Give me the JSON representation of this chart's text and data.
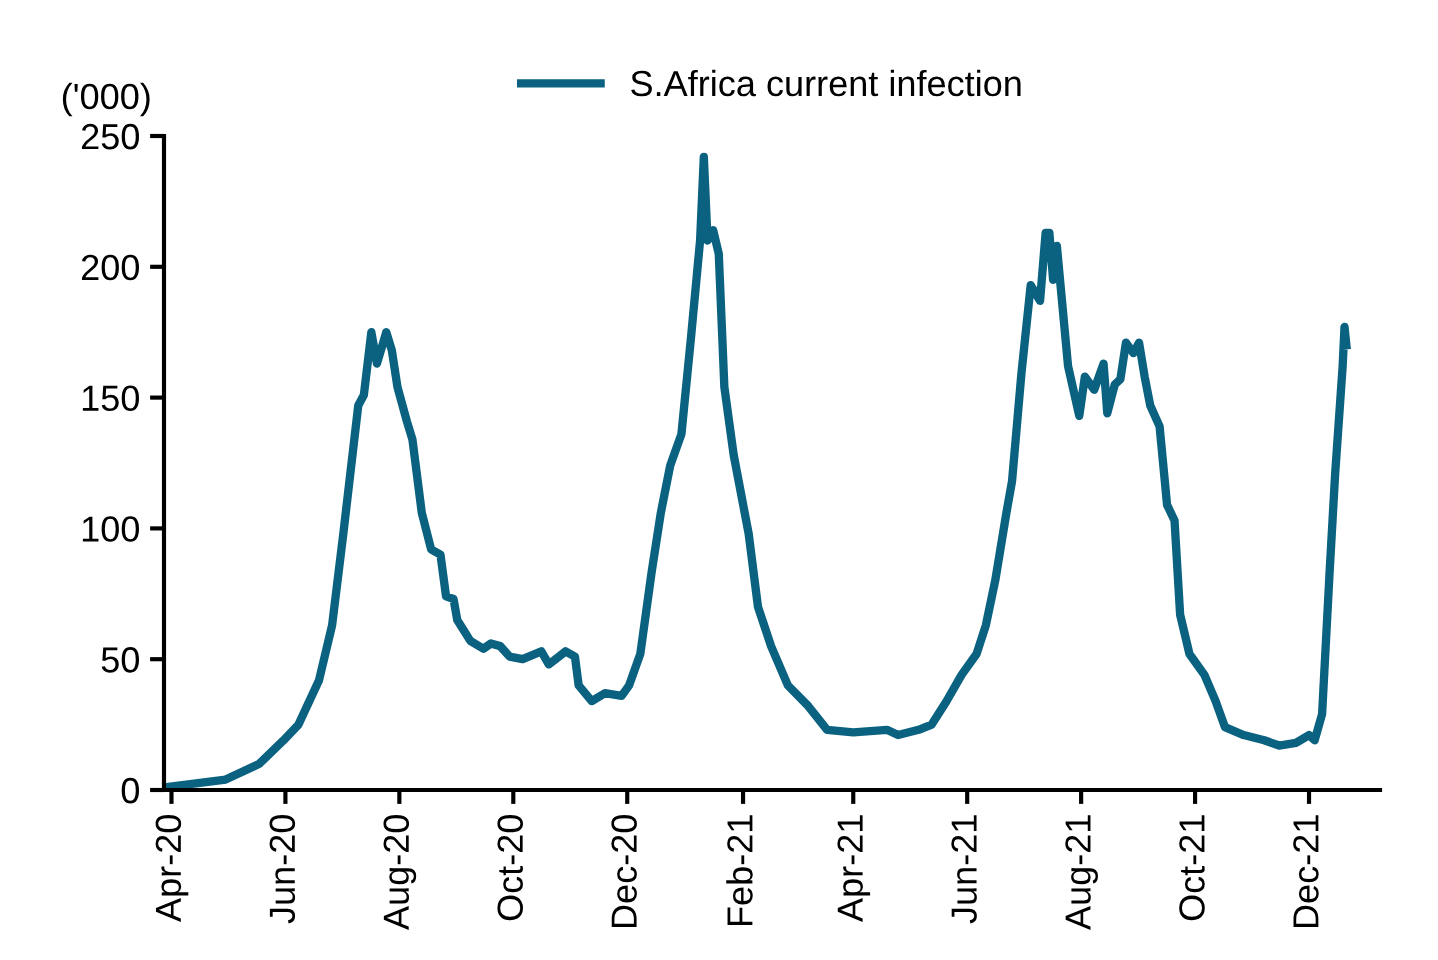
{
  "chart_data": {
    "type": "line",
    "ylabel": "('000)",
    "legend": "top",
    "grid": false,
    "marker": "none",
    "line_style": "solid",
    "xlim": [
      "2020-03-28",
      "2022-01-08"
    ],
    "ylim": [
      0,
      250
    ],
    "yticks": [
      0,
      50,
      100,
      150,
      200,
      250
    ],
    "xticks": [
      {
        "value": "2020-04-01",
        "label": "Apr-20"
      },
      {
        "value": "2020-06-01",
        "label": "Jun-20"
      },
      {
        "value": "2020-08-01",
        "label": "Aug-20"
      },
      {
        "value": "2020-10-01",
        "label": "Oct-20"
      },
      {
        "value": "2020-12-01",
        "label": "Dec-20"
      },
      {
        "value": "2021-02-01",
        "label": "Feb-21"
      },
      {
        "value": "2021-04-01",
        "label": "Apr-21"
      },
      {
        "value": "2021-06-01",
        "label": "Jun-21"
      },
      {
        "value": "2021-08-01",
        "label": "Aug-21"
      },
      {
        "value": "2021-10-01",
        "label": "Oct-21"
      },
      {
        "value": "2021-12-01",
        "label": "Dec-21"
      }
    ],
    "series": [
      {
        "name": "S.Africa current infection",
        "color": "#0b6280",
        "x": [
          "2020-03-28",
          "2020-04-30",
          "2020-05-18",
          "2020-05-31",
          "2020-06-08",
          "2020-06-19",
          "2020-06-26",
          "2020-07-02",
          "2020-07-10",
          "2020-07-13",
          "2020-07-17",
          "2020-07-20",
          "2020-07-25",
          "2020-07-28",
          "2020-07-31",
          "2020-08-05",
          "2020-08-08",
          "2020-08-13",
          "2020-08-18",
          "2020-08-23",
          "2020-08-26",
          "2020-08-30",
          "2020-09-01",
          "2020-09-08",
          "2020-09-15",
          "2020-09-19",
          "2020-09-24",
          "2020-09-29",
          "2020-10-06",
          "2020-10-16",
          "2020-10-20",
          "2020-10-29",
          "2020-11-03",
          "2020-11-05",
          "2020-11-12",
          "2020-11-19",
          "2020-11-28",
          "2020-12-02",
          "2020-12-08",
          "2020-12-14",
          "2020-12-19",
          "2020-12-24",
          "2020-12-30",
          "2021-01-04",
          "2021-01-09",
          "2021-01-11",
          "2021-01-13",
          "2021-01-16",
          "2021-01-19",
          "2021-01-22",
          "2021-01-27",
          "2021-02-04",
          "2021-02-09",
          "2021-02-16",
          "2021-02-25",
          "2021-03-08",
          "2021-03-18",
          "2021-04-01",
          "2021-04-19",
          "2021-04-25",
          "2021-05-06",
          "2021-05-13",
          "2021-05-21",
          "2021-05-29",
          "2021-06-06",
          "2021-06-11",
          "2021-06-16",
          "2021-06-22",
          "2021-06-25",
          "2021-06-30",
          "2021-07-05",
          "2021-07-10",
          "2021-07-13",
          "2021-07-15",
          "2021-07-17",
          "2021-07-19",
          "2021-07-25",
          "2021-07-31",
          "2021-08-03",
          "2021-08-08",
          "2021-08-13",
          "2021-08-15",
          "2021-08-19",
          "2021-08-22",
          "2021-08-25",
          "2021-08-29",
          "2021-09-01",
          "2021-09-04",
          "2021-09-07",
          "2021-09-12",
          "2021-09-16",
          "2021-09-20",
          "2021-09-23",
          "2021-09-28",
          "2021-10-06",
          "2021-10-12",
          "2021-10-17",
          "2021-10-27",
          "2021-11-07",
          "2021-11-15",
          "2021-11-24",
          "2021-12-01",
          "2021-12-04",
          "2021-12-08",
          "2021-12-12",
          "2021-12-15",
          "2021-12-19",
          "2021-12-20",
          "2021-12-21"
        ],
        "values": [
          1,
          4,
          10,
          19,
          25,
          42,
          63,
          98,
          147,
          151,
          175,
          163,
          175,
          168,
          154,
          141,
          134,
          106,
          92,
          90,
          74,
          73,
          65,
          57,
          54,
          56,
          55,
          51,
          50,
          53,
          48,
          53,
          51,
          40,
          34,
          37,
          36,
          40,
          52,
          83,
          106,
          124,
          136,
          172,
          210,
          242,
          210,
          214,
          205,
          154,
          128,
          98,
          70,
          55,
          40,
          32,
          23,
          22,
          23,
          21,
          23,
          25,
          34,
          44,
          52,
          63,
          80,
          106,
          118,
          159,
          193,
          187,
          213,
          213,
          195,
          208,
          162,
          143,
          158,
          153,
          163,
          144,
          155,
          157,
          171,
          167,
          171,
          158,
          147,
          139,
          109,
          103,
          67,
          52,
          44,
          34,
          24,
          21,
          19,
          17,
          18,
          21,
          19,
          29,
          83,
          121,
          162,
          177,
          170
        ]
      }
    ]
  }
}
